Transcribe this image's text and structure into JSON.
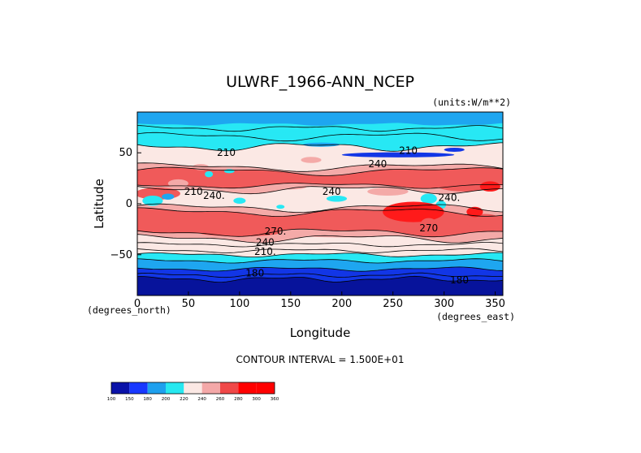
{
  "chart_data": {
    "type": "heatmap",
    "title": "ULWRF_1966-ANN_NCEP",
    "units": "(units:W/m**2)",
    "xlabel": "Longitude",
    "ylabel": "Latitude",
    "x_units": "(degrees_east)",
    "y_units": "(degrees_north)",
    "xlim": [
      0,
      357.5
    ],
    "ylim": [
      -90,
      90
    ],
    "x_ticks": [
      "0",
      "50",
      "100",
      "150",
      "200",
      "250",
      "300",
      "350"
    ],
    "y_ticks": [
      "50",
      "0",
      "−50"
    ],
    "contour_interval_text": "CONTOUR INTERVAL = 1.500E+01",
    "contour_labels": [
      {
        "text": "210",
        "lon": 87,
        "lat": 50
      },
      {
        "text": "210",
        "lon": 265,
        "lat": 52
      },
      {
        "text": "240",
        "lon": 235,
        "lat": 39
      },
      {
        "text": "240",
        "lon": 190,
        "lat": 12
      },
      {
        "text": "210",
        "lon": 55,
        "lat": 12
      },
      {
        "text": "240.",
        "lon": 75,
        "lat": 8
      },
      {
        "text": "240.",
        "lon": 305,
        "lat": 6
      },
      {
        "text": "270.",
        "lon": 135,
        "lat": -27
      },
      {
        "text": "270",
        "lon": 285,
        "lat": -24
      },
      {
        "text": "240",
        "lon": 125,
        "lat": -38
      },
      {
        "text": "210.",
        "lon": 125,
        "lat": -47
      },
      {
        "text": "180",
        "lon": 115,
        "lat": -68
      },
      {
        "text": "180",
        "lon": 315,
        "lat": -75
      }
    ],
    "colorbar": {
      "levels": [
        "100",
        "150",
        "180",
        "200",
        "220",
        "240",
        "260",
        "280",
        "300",
        "360"
      ],
      "colors": [
        "#0a12a8",
        "#1838ff",
        "#1ea0ee",
        "#27e8f0",
        "#fbe8e4",
        "#f4a8a8",
        "#f04848",
        "#ff0000",
        "#ff0000"
      ]
    },
    "palette": {
      "bottom_deep": "#07139b",
      "dark_blue": "#1236e6",
      "medium_blue": "#1ea6f0",
      "cyan": "#27e8f4",
      "pale": "#fbe8e4",
      "pink": "#f4aaa8",
      "salmon": "#f05a5a",
      "red": "#ff1a1a"
    }
  }
}
